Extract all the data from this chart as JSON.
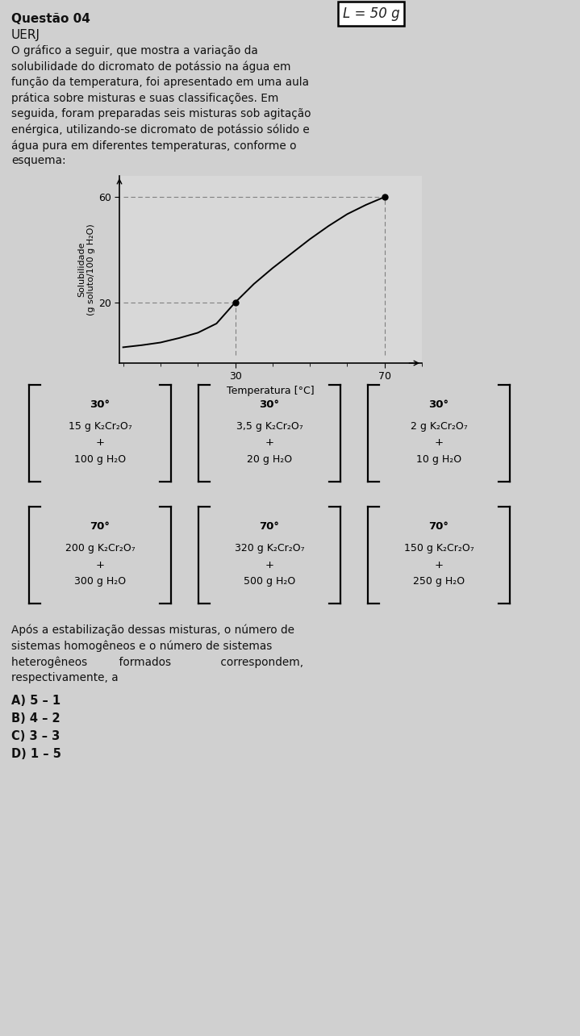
{
  "title_line1": "Questão 04",
  "title_line2": "UERJ",
  "handwritten_box": "L = 50 g",
  "paragraph_lines": [
    "O gráfico a seguir, que mostra a variação da",
    "solubilidade do dicromato de potássio na água em",
    "função da temperatura, foi apresentado em uma aula",
    "prática sobre misturas e suas classificações. Em",
    "seguida, foram preparadas seis misturas sob agitação",
    "enérgica, utilizando-se dicromato de potássio sólido e",
    "água pura em diferentes temperaturas, conforme o",
    "esquema:"
  ],
  "graph": {
    "ylabel_line1": "Solubilidade",
    "ylabel_line2": "(g soluto/100 g H₂O)",
    "xlabel": "Temperatura [°C]",
    "yticks": [
      20,
      60
    ],
    "xticks": [
      30,
      70
    ],
    "curve_x": [
      0,
      5,
      10,
      15,
      20,
      25,
      30,
      35,
      40,
      45,
      50,
      55,
      60,
      65,
      70
    ],
    "curve_y": [
      3.0,
      3.8,
      4.8,
      6.5,
      8.5,
      12.0,
      20.0,
      27.0,
      33.0,
      38.5,
      44.0,
      49.0,
      53.5,
      57.0,
      60.0
    ],
    "marked_points": [
      [
        30,
        20
      ],
      [
        70,
        60
      ]
    ],
    "background_color": "#d8d8d8"
  },
  "boxes_row1": [
    {
      "temp": "30°",
      "solute": "15 g K₂Cr₂O₇",
      "plus": "+",
      "solvent": "100 g H₂O"
    },
    {
      "temp": "30°",
      "solute": "3,5 g K₂Cr₂O₇",
      "plus": "+",
      "solvent": "20 g H₂O"
    },
    {
      "temp": "30°",
      "solute": "2 g K₂Cr₂O₇",
      "plus": "+",
      "solvent": "10 g H₂O"
    }
  ],
  "boxes_row2": [
    {
      "temp": "70°",
      "solute": "200 g K₂Cr₂O₇",
      "plus": "+",
      "solvent": "300 g H₂O"
    },
    {
      "temp": "70°",
      "solute": "320 g K₂Cr₂O₇",
      "plus": "+",
      "solvent": "500 g H₂O"
    },
    {
      "temp": "70°",
      "solute": "150 g K₂Cr₂O₇",
      "plus": "+",
      "solvent": "250 g H₂O"
    }
  ],
  "conclusion_lines": [
    "Após a estabilização dessas misturas, o número de",
    "sistemas homogêneos e o número de sistemas",
    "heterogêneos         formados              correspondem,",
    "respectivamente, a"
  ],
  "options": [
    "A) 5 – 1",
    "B) 4 – 2",
    "C) 3 – 3",
    "D) 1 – 5"
  ],
  "bg_color": "#d0d0d0",
  "text_color": "#111111"
}
